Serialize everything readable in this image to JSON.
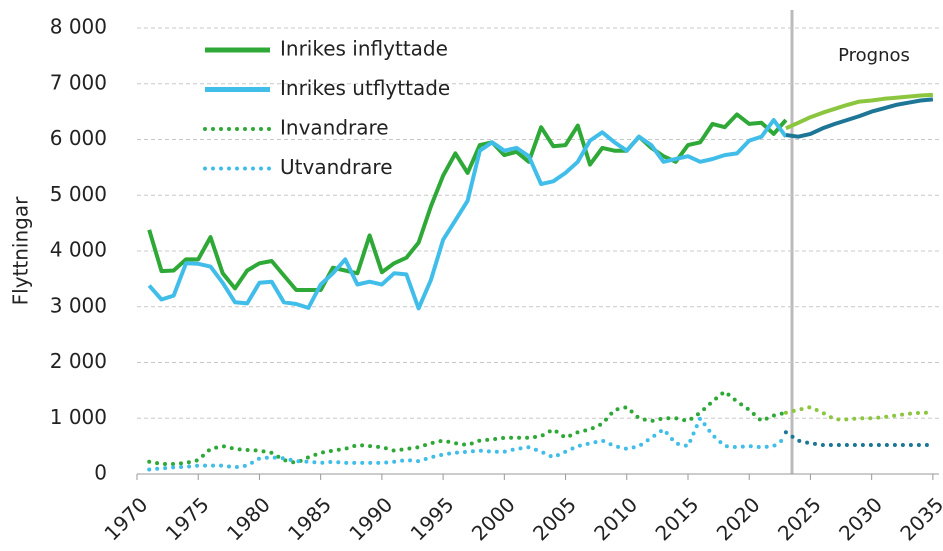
{
  "chart_data": {
    "type": "line",
    "ylabel": "Flyttningar",
    "annotation": "Prognos",
    "xlim": [
      1970,
      2035.5
    ],
    "xticks": [
      1970,
      1975,
      1980,
      1985,
      1990,
      1995,
      2000,
      2005,
      2010,
      2015,
      2020,
      2025,
      2030,
      2035
    ],
    "ylim": [
      0,
      8000
    ],
    "yticks": [
      0,
      {
        "value": 1000,
        "label": "1 000"
      },
      {
        "value": 2000,
        "label": "2 000"
      },
      {
        "value": 3000,
        "label": "3 000"
      },
      {
        "value": 4000,
        "label": "4 000"
      },
      {
        "value": 5000,
        "label": "5 000"
      },
      {
        "value": 6000,
        "label": "6 000"
      },
      {
        "value": 7000,
        "label": "7 000"
      },
      {
        "value": 8000,
        "label": "8 000"
      }
    ],
    "grid": true,
    "legend": "upper-left",
    "series": [
      {
        "name": "Inrikes inflyttade",
        "color": "#2ea836",
        "style": "solid",
        "x": [
          1971,
          1972,
          1973,
          1974,
          1975,
          1976,
          1977,
          1978,
          1979,
          1980,
          1981,
          1982,
          1983,
          1984,
          1985,
          1986,
          1987,
          1988,
          1989,
          1990,
          1991,
          1992,
          1993,
          1994,
          1995,
          1996,
          1997,
          1998,
          1999,
          2000,
          2001,
          2002,
          2003,
          2004,
          2005,
          2006,
          2007,
          2008,
          2009,
          2010,
          2011,
          2012,
          2013,
          2014,
          2015,
          2016,
          2017,
          2018,
          2019,
          2020,
          2021,
          2022,
          2023
        ],
        "values": [
          4380,
          3640,
          3650,
          3850,
          3850,
          4250,
          3600,
          3330,
          3650,
          3780,
          3820,
          3560,
          3300,
          3300,
          3300,
          3700,
          3650,
          3600,
          4280,
          3620,
          3780,
          3880,
          4150,
          4800,
          5350,
          5750,
          5400,
          5900,
          5950,
          5720,
          5780,
          5600,
          6220,
          5880,
          5900,
          6250,
          5550,
          5850,
          5800,
          5800,
          6050,
          5850,
          5700,
          5600,
          5900,
          5950,
          6280,
          6220,
          6450,
          6280,
          6300,
          6100,
          6350
        ]
      },
      {
        "name": "Inrikes utflyttade",
        "color": "#41bde9",
        "style": "solid",
        "x": [
          1971,
          1972,
          1973,
          1974,
          1975,
          1976,
          1977,
          1978,
          1979,
          1980,
          1981,
          1982,
          1983,
          1984,
          1985,
          1986,
          1987,
          1988,
          1989,
          1990,
          1991,
          1992,
          1993,
          1994,
          1995,
          1996,
          1997,
          1998,
          1999,
          2000,
          2001,
          2002,
          2003,
          2004,
          2005,
          2006,
          2007,
          2008,
          2009,
          2010,
          2011,
          2012,
          2013,
          2014,
          2015,
          2016,
          2017,
          2018,
          2019,
          2020,
          2021,
          2022,
          2023
        ],
        "values": [
          3380,
          3130,
          3200,
          3780,
          3770,
          3720,
          3430,
          3080,
          3060,
          3430,
          3450,
          3080,
          3050,
          2980,
          3400,
          3600,
          3850,
          3400,
          3450,
          3400,
          3600,
          3580,
          2970,
          3480,
          4200,
          4550,
          4900,
          5800,
          5950,
          5800,
          5850,
          5700,
          5200,
          5250,
          5400,
          5600,
          5980,
          6130,
          5950,
          5800,
          6050,
          5900,
          5600,
          5650,
          5700,
          5600,
          5650,
          5720,
          5750,
          5980,
          6050,
          6350,
          6050
        ]
      },
      {
        "name": "Invandrare",
        "color": "#2ea836",
        "style": "dotted",
        "x": [
          1971,
          1972,
          1973,
          1974,
          1975,
          1976,
          1977,
          1978,
          1979,
          1980,
          1981,
          1982,
          1983,
          1984,
          1985,
          1986,
          1987,
          1988,
          1989,
          1990,
          1991,
          1992,
          1993,
          1994,
          1995,
          1996,
          1997,
          1998,
          1999,
          2000,
          2001,
          2002,
          2003,
          2004,
          2005,
          2006,
          2007,
          2008,
          2009,
          2010,
          2011,
          2012,
          2013,
          2014,
          2015,
          2016,
          2017,
          2018,
          2019,
          2020,
          2021,
          2022,
          2023
        ],
        "values": [
          220,
          180,
          180,
          200,
          250,
          450,
          500,
          450,
          430,
          420,
          380,
          250,
          200,
          300,
          380,
          420,
          450,
          520,
          500,
          480,
          420,
          450,
          480,
          550,
          600,
          550,
          520,
          600,
          620,
          650,
          650,
          650,
          680,
          800,
          650,
          750,
          800,
          900,
          1150,
          1200,
          1000,
          950,
          1000,
          1000,
          950,
          1100,
          1300,
          1480,
          1300,
          1150,
          950,
          1050,
          1100
        ]
      },
      {
        "name": "Utvandrare",
        "color": "#41bde9",
        "style": "dotted",
        "x": [
          1971,
          1972,
          1973,
          1974,
          1975,
          1976,
          1977,
          1978,
          1979,
          1980,
          1981,
          1982,
          1983,
          1984,
          1985,
          1986,
          1987,
          1988,
          1989,
          1990,
          1991,
          1992,
          1993,
          1994,
          1995,
          1996,
          1997,
          1998,
          1999,
          2000,
          2001,
          2002,
          2003,
          2004,
          2005,
          2006,
          2007,
          2008,
          2009,
          2010,
          2011,
          2012,
          2013,
          2014,
          2015,
          2016,
          2017,
          2018,
          2019,
          2020,
          2021,
          2022,
          2023
        ],
        "values": [
          80,
          100,
          120,
          130,
          150,
          150,
          150,
          120,
          150,
          280,
          300,
          280,
          230,
          220,
          200,
          220,
          200,
          200,
          200,
          200,
          220,
          250,
          230,
          300,
          350,
          380,
          400,
          420,
          400,
          400,
          450,
          480,
          400,
          300,
          400,
          500,
          550,
          600,
          500,
          450,
          500,
          650,
          800,
          550,
          500,
          1000,
          700,
          500,
          480,
          500,
          480,
          500,
          650
        ]
      },
      {
        "color": "#8cc63f",
        "style": "solid",
        "x": [
          2023,
          2024,
          2025,
          2026,
          2027,
          2028,
          2029,
          2030,
          2031,
          2032,
          2033,
          2034,
          2035
        ],
        "values": [
          6200,
          6300,
          6400,
          6480,
          6550,
          6620,
          6680,
          6700,
          6730,
          6750,
          6770,
          6790,
          6800
        ]
      },
      {
        "color": "#1d7696",
        "style": "solid",
        "x": [
          2023,
          2024,
          2025,
          2026,
          2027,
          2028,
          2029,
          2030,
          2031,
          2032,
          2033,
          2034,
          2035
        ],
        "values": [
          6080,
          6050,
          6100,
          6200,
          6280,
          6350,
          6420,
          6500,
          6560,
          6620,
          6660,
          6700,
          6720
        ]
      },
      {
        "color": "#8cc63f",
        "style": "dotted",
        "x": [
          2023,
          2024,
          2025,
          2026,
          2027,
          2028,
          2029,
          2030,
          2031,
          2032,
          2033,
          2034,
          2035
        ],
        "values": [
          1100,
          1150,
          1200,
          1100,
          980,
          980,
          1000,
          1000,
          1020,
          1050,
          1080,
          1100,
          1100
        ]
      },
      {
        "color": "#1d7696",
        "style": "dotted",
        "x": [
          2023,
          2024,
          2025,
          2026,
          2027,
          2028,
          2029,
          2030,
          2031,
          2032,
          2033,
          2034,
          2035
        ],
        "values": [
          750,
          600,
          550,
          520,
          520,
          520,
          520,
          520,
          520,
          520,
          520,
          520,
          520
        ]
      }
    ]
  }
}
